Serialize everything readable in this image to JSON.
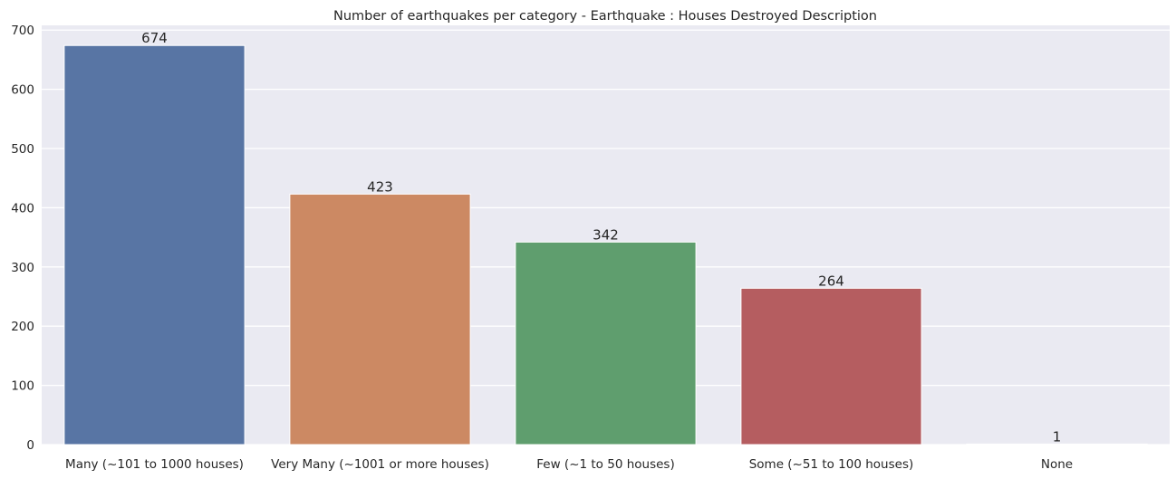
{
  "chart_data": {
    "type": "bar",
    "title": "Number of earthquakes per category - Earthquake : Houses Destroyed Description",
    "xlabel": "",
    "ylabel": "",
    "categories": [
      "Many (~101 to 1000 houses)",
      "Very Many (~1001 or more houses)",
      "Few (~1 to 50 houses)",
      "Some (~51 to 100 houses)",
      "None"
    ],
    "values": [
      674,
      423,
      342,
      264,
      1
    ],
    "value_labels": [
      "674",
      "423",
      "342",
      "264",
      "1"
    ],
    "colors": [
      "#5875a4",
      "#cc8963",
      "#5f9e6e",
      "#b55d60",
      "#857aab"
    ],
    "ylim": [
      0,
      708
    ],
    "yticks": [
      0,
      100,
      200,
      300,
      400,
      500,
      600,
      700
    ],
    "ytick_labels": [
      "0",
      "100",
      "200",
      "300",
      "400",
      "500",
      "600",
      "700"
    ],
    "grid": true,
    "background": "#eaeaf2"
  }
}
